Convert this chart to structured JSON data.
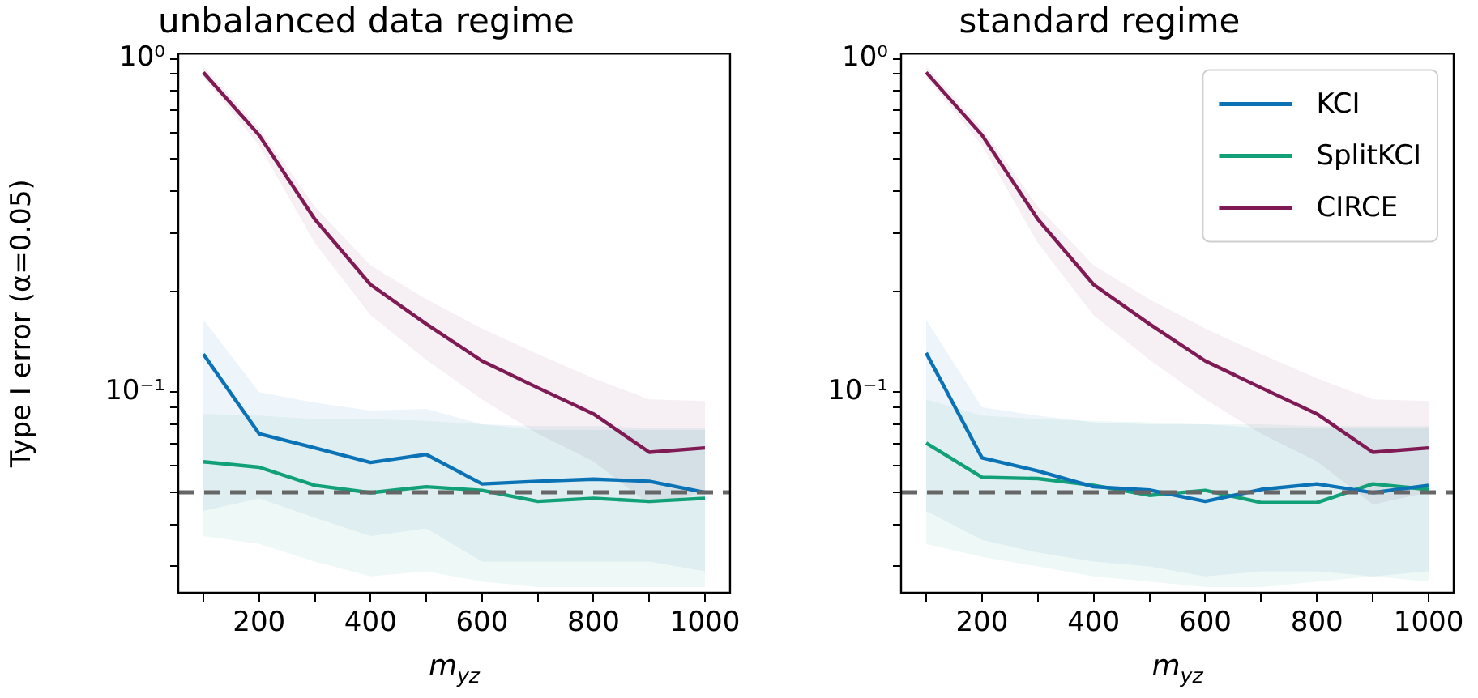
{
  "chart_data": [
    {
      "type": "line",
      "title": "unbalanced data regime",
      "xlabel": "m$_{yz}$",
      "ylabel": "Type I error (α=0.05)",
      "log": "y",
      "legend": false,
      "x": [
        100,
        200,
        300,
        400,
        500,
        600,
        700,
        800,
        900,
        1000
      ],
      "xlim": [
        55,
        1045
      ],
      "xticks": [
        {
          "value": 100,
          "label": null
        },
        200,
        {
          "value": 300,
          "label": null
        },
        400,
        {
          "value": 500,
          "label": null
        },
        600,
        {
          "value": 700,
          "label": null
        },
        800,
        {
          "value": 900,
          "label": null
        },
        1000
      ],
      "ylim": [
        0.025,
        1.035
      ],
      "yticks": [
        {
          "value": 0.03,
          "label": null
        },
        {
          "value": 0.04,
          "label": null
        },
        {
          "value": 0.05,
          "label": null
        },
        {
          "value": 0.06,
          "label": null
        },
        {
          "value": 0.07,
          "label": null
        },
        {
          "value": 0.08,
          "label": null
        },
        {
          "value": 0.09,
          "label": null
        },
        {
          "value": 0.1,
          "label": "10⁻¹"
        },
        {
          "value": 0.2,
          "label": null
        },
        {
          "value": 0.3,
          "label": null
        },
        {
          "value": 0.4,
          "label": null
        },
        {
          "value": 0.5,
          "label": null
        },
        {
          "value": 0.6,
          "label": null
        },
        {
          "value": 0.7,
          "label": null
        },
        {
          "value": 0.8,
          "label": null
        },
        {
          "value": 0.9,
          "label": null
        },
        {
          "value": 1,
          "label": "10⁰"
        }
      ],
      "ref_lines": [
        {
          "axis": "y",
          "value": 0.05,
          "color": "#666666",
          "line_style": "dashed"
        }
      ],
      "series": [
        {
          "color": "#0b72b6",
          "values": [
            0.13,
            0.075,
            0.068,
            0.0615,
            0.065,
            0.053,
            0.054,
            0.0548,
            0.054,
            0.05
          ],
          "lower": [
            0.044,
            0.048,
            0.042,
            0.037,
            0.039,
            0.031,
            0.031,
            0.031,
            0.031,
            0.029
          ],
          "upper": [
            0.165,
            0.1,
            0.093,
            0.088,
            0.089,
            0.08,
            0.079,
            0.079,
            0.078,
            0.078
          ]
        },
        {
          "color": "#12a079",
          "values": [
            0.0618,
            0.0595,
            0.0525,
            0.0499,
            0.052,
            0.0507,
            0.047,
            0.048,
            0.047,
            0.048
          ],
          "lower": [
            0.037,
            0.035,
            0.031,
            0.028,
            0.029,
            0.027,
            0.026,
            0.026,
            0.026,
            0.026
          ],
          "upper": [
            0.086,
            0.085,
            0.083,
            0.083,
            0.082,
            0.08,
            0.077,
            0.077,
            0.077,
            0.077
          ]
        },
        {
          "color": "#7f1a55",
          "values": [
            0.91,
            0.59,
            0.33,
            0.21,
            0.16,
            0.124,
            0.103,
            0.086,
            0.066,
            0.068
          ],
          "lower": [
            0.88,
            0.55,
            0.28,
            0.17,
            0.125,
            0.095,
            0.075,
            0.062,
            0.046,
            0.05
          ],
          "upper": [
            0.95,
            0.62,
            0.36,
            0.24,
            0.19,
            0.155,
            0.13,
            0.11,
            0.095,
            0.094
          ]
        }
      ]
    },
    {
      "type": "line",
      "title": "standard regime",
      "xlabel": "m$_{yz}$",
      "log": "y",
      "legend": "top right",
      "x": [
        100,
        200,
        300,
        400,
        500,
        600,
        700,
        800,
        900,
        1000
      ],
      "xlim": [
        55,
        1045
      ],
      "xticks": [
        {
          "value": 100,
          "label": null
        },
        200,
        {
          "value": 300,
          "label": null
        },
        400,
        {
          "value": 500,
          "label": null
        },
        600,
        {
          "value": 700,
          "label": null
        },
        800,
        {
          "value": 900,
          "label": null
        },
        1000
      ],
      "ylim": [
        0.025,
        1.035
      ],
      "yticks": [
        {
          "value": 0.03,
          "label": null
        },
        {
          "value": 0.04,
          "label": null
        },
        {
          "value": 0.05,
          "label": null
        },
        {
          "value": 0.06,
          "label": null
        },
        {
          "value": 0.07,
          "label": null
        },
        {
          "value": 0.08,
          "label": null
        },
        {
          "value": 0.09,
          "label": null
        },
        {
          "value": 0.1,
          "label": "10⁻¹"
        },
        {
          "value": 0.2,
          "label": null
        },
        {
          "value": 0.3,
          "label": null
        },
        {
          "value": 0.4,
          "label": null
        },
        {
          "value": 0.5,
          "label": null
        },
        {
          "value": 0.6,
          "label": null
        },
        {
          "value": 0.7,
          "label": null
        },
        {
          "value": 0.8,
          "label": null
        },
        {
          "value": 0.9,
          "label": null
        },
        {
          "value": 1,
          "label": "10⁰"
        }
      ],
      "ref_lines": [
        {
          "axis": "y",
          "value": 0.05,
          "color": "#666666",
          "line_style": "dashed"
        }
      ],
      "series": [
        {
          "name": "KCI",
          "color": "#0b72b6",
          "values": [
            0.131,
            0.0635,
            0.058,
            0.052,
            0.0508,
            0.047,
            0.051,
            0.053,
            0.0499,
            0.0525
          ],
          "lower": [
            0.044,
            0.036,
            0.033,
            0.031,
            0.03,
            0.028,
            0.029,
            0.029,
            0.028,
            0.029
          ],
          "upper": [
            0.165,
            0.09,
            0.085,
            0.081,
            0.08,
            0.08,
            0.078,
            0.078,
            0.078,
            0.078
          ]
        },
        {
          "name": "SplitKCI",
          "color": "#12a079",
          "values": [
            0.0703,
            0.0555,
            0.055,
            0.0525,
            0.049,
            0.0507,
            0.0466,
            0.0466,
            0.053,
            0.051
          ],
          "lower": [
            0.035,
            0.032,
            0.03,
            0.028,
            0.027,
            0.026,
            0.026,
            0.027,
            0.028,
            0.027
          ],
          "upper": [
            0.095,
            0.085,
            0.083,
            0.082,
            0.081,
            0.08,
            0.08,
            0.079,
            0.079,
            0.079
          ]
        },
        {
          "name": "CIRCE",
          "color": "#7f1a55",
          "values": [
            0.91,
            0.59,
            0.33,
            0.21,
            0.16,
            0.124,
            0.103,
            0.086,
            0.066,
            0.068
          ],
          "lower": [
            0.88,
            0.55,
            0.28,
            0.17,
            0.125,
            0.095,
            0.075,
            0.062,
            0.046,
            0.05
          ],
          "upper": [
            0.95,
            0.62,
            0.36,
            0.24,
            0.19,
            0.155,
            0.13,
            0.11,
            0.095,
            0.094
          ]
        }
      ]
    }
  ]
}
